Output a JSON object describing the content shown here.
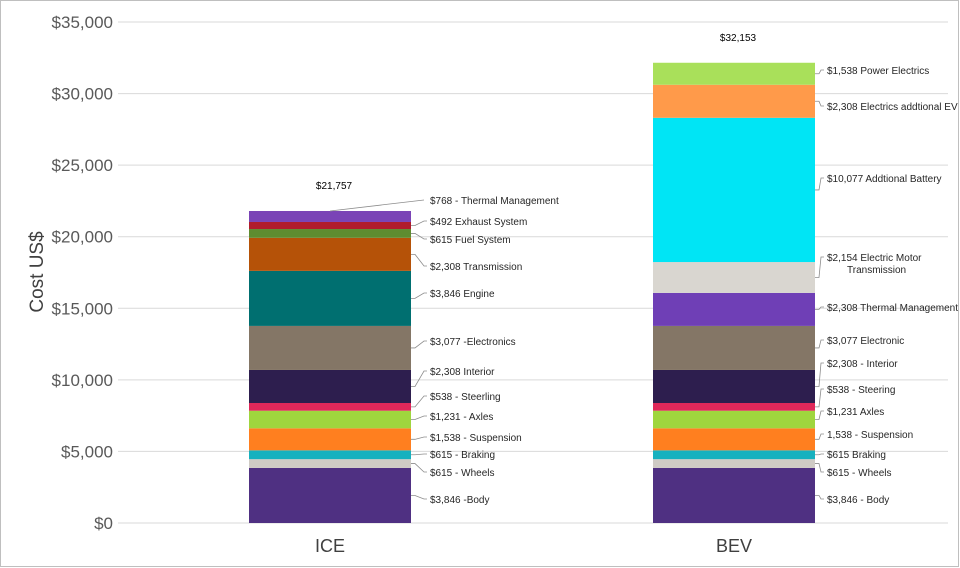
{
  "chart_data": {
    "type": "bar",
    "stacked": true,
    "ylabel": "Cost US$",
    "ylim": [
      0,
      35000
    ],
    "yticks": [
      "$0",
      "$5,000",
      "$10,000",
      "$15,000",
      "$20,000",
      "$25,000",
      "$30,000",
      "$35,000"
    ],
    "ytick_values": [
      0,
      5000,
      10000,
      15000,
      20000,
      25000,
      30000,
      35000
    ],
    "grid": true,
    "categories": [
      "ICE",
      "BEV"
    ],
    "totals": [
      "$21,757",
      "$32,153"
    ],
    "bars": [
      {
        "category": "ICE",
        "segments": [
          {
            "label": "$3,846 -Body",
            "value": 3846,
            "color": "#4f3082"
          },
          {
            "label": "$615 - Wheels",
            "value": 615,
            "color": "#cfcbc5"
          },
          {
            "label": "$615 - Braking",
            "value": 615,
            "color": "#17b1bf"
          },
          {
            "label": "$1,538 - Suspension",
            "value": 1538,
            "color": "#ff7f1f"
          },
          {
            "label": "$1,231 - Axles",
            "value": 1231,
            "color": "#9fd63e"
          },
          {
            "label": "$538 - Steerling",
            "value": 538,
            "color": "#e0285a"
          },
          {
            "label": "$2,308 Interior",
            "value": 2308,
            "color": "#2d1e4e"
          },
          {
            "label": "$3,077 -Electronics",
            "value": 3077,
            "color": "#847666"
          },
          {
            "label": "$3,846  Engine",
            "value": 3846,
            "color": "#006f70"
          },
          {
            "label": "$2,308 Transmission",
            "value": 2308,
            "color": "#b55208"
          },
          {
            "label": "$615 Fuel System",
            "value": 615,
            "color": "#5e8c30"
          },
          {
            "label": "$492 Exhaust System",
            "value": 492,
            "color": "#b01c2c"
          },
          {
            "label": "$768 - Thermal Management",
            "value": 768,
            "color": "#7a44b6"
          }
        ]
      },
      {
        "category": "BEV",
        "segments": [
          {
            "label": "$3,846 - Body",
            "value": 3846,
            "color": "#4f3082"
          },
          {
            "label": "$615 - Wheels",
            "value": 615,
            "color": "#cfcbc5"
          },
          {
            "label": "$615 Braking",
            "value": 615,
            "color": "#17b1bf"
          },
          {
            "label": "1,538 - Suspension",
            "value": 1538,
            "color": "#ff7f1f"
          },
          {
            "label": "$1,231 Axles",
            "value": 1231,
            "color": "#9fd63e"
          },
          {
            "label": "$538 - Steering",
            "value": 538,
            "color": "#e0285a"
          },
          {
            "label": "$2,308 - Interior",
            "value": 2308,
            "color": "#2d1e4e"
          },
          {
            "label": "$3,077 Electronic",
            "value": 3077,
            "color": "#847666"
          },
          {
            "label": "$2,308 Thermal Management",
            "value": 2308,
            "color": "#6f3fb6"
          },
          {
            "label": "$2,154  Electric Motor\nTransmission",
            "value": 2154,
            "color": "#d9d6d0"
          },
          {
            "label": "$10,077 Addtional Battery",
            "value": 10077,
            "color": "#00e5f5"
          },
          {
            "label": "$2,308 Electrics addtional EV",
            "value": 2308,
            "color": "#ff9a4a"
          },
          {
            "label": "$1,538 Power Electrics",
            "value": 1538,
            "color": "#a9e05a"
          }
        ]
      }
    ]
  }
}
